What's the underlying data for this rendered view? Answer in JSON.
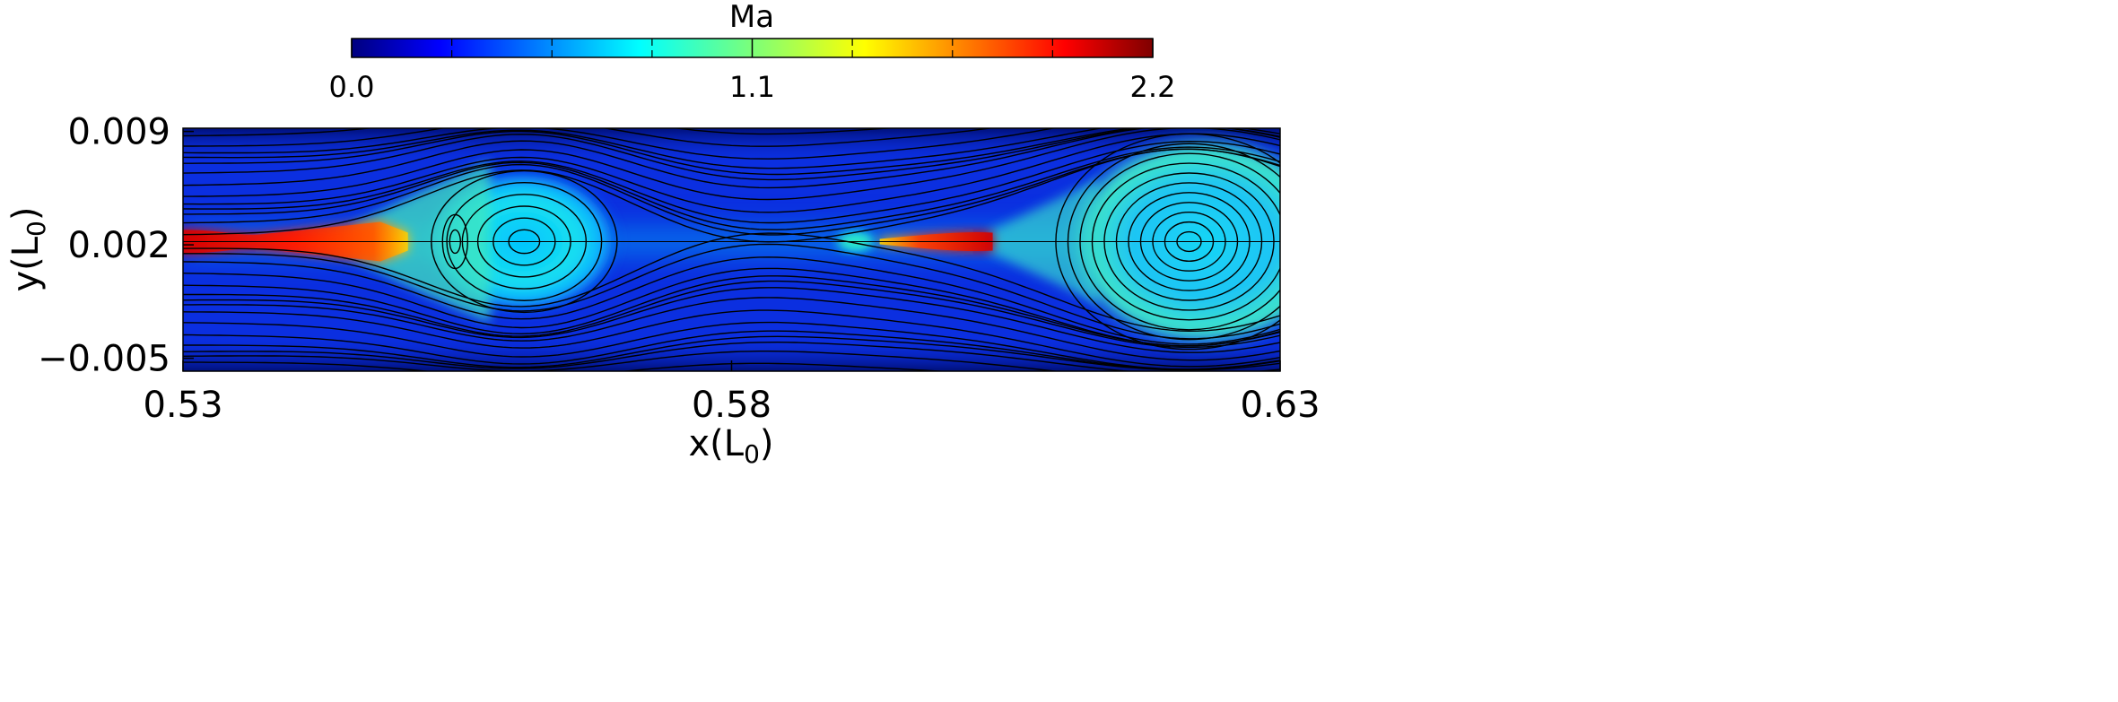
{
  "chart_data": {
    "type": "heatmap",
    "xlabel": "x(L",
    "xlabel_sub": "0",
    "xlabel_close": ")",
    "ylabel": "y(L",
    "ylabel_sub": "0",
    "ylabel_close": ")",
    "xlim": [
      0.53,
      0.63
    ],
    "ylim": [
      -0.0058,
      0.0092
    ],
    "x_ticks": [
      0.53,
      0.58,
      0.63
    ],
    "x_tick_labels": [
      "0.53",
      "0.58",
      "0.63"
    ],
    "y_ticks": [
      -0.005,
      0.002,
      0.009
    ],
    "y_tick_labels": [
      "−0.005",
      "0.002",
      "0.009"
    ],
    "colorbar": {
      "label": "Ma",
      "range": [
        0.0,
        2.2
      ],
      "ticks": [
        0.0,
        1.1,
        2.2
      ],
      "tick_labels": [
        "0.0",
        "1.1",
        "2.2"
      ],
      "colormap": "jet",
      "placement": "top"
    },
    "colors": {
      "low": "#00007f",
      "background_flow": "#0b2fe0",
      "mid_low": "#00b4ff",
      "mid": "#4dff9e",
      "high": "#ff2a00",
      "max": "#7f0000"
    },
    "features": {
      "current_sheet_y": 0.0022,
      "plasmoids": [
        {
          "center_x": 0.5609,
          "center_y": 0.0022,
          "half_width": 0.0092,
          "half_height": 0.0046,
          "peak_ma": 0.75
        },
        {
          "center_x": 0.6217,
          "center_y": 0.0022,
          "half_width": 0.0132,
          "half_height": 0.007,
          "peak_ma": 0.85
        },
        {
          "center_x": 0.5913,
          "center_y": 0.0022,
          "half_width": 0.0016,
          "half_height": 0.0006,
          "peak_ma": 1.0
        }
      ],
      "supersonic_jets": [
        {
          "x_start": 0.53,
          "x_end": 0.5505,
          "peak_ma": 2.0
        },
        {
          "x_start": 0.5935,
          "x_end": 0.6038,
          "peak_ma": 2.1
        }
      ]
    }
  }
}
